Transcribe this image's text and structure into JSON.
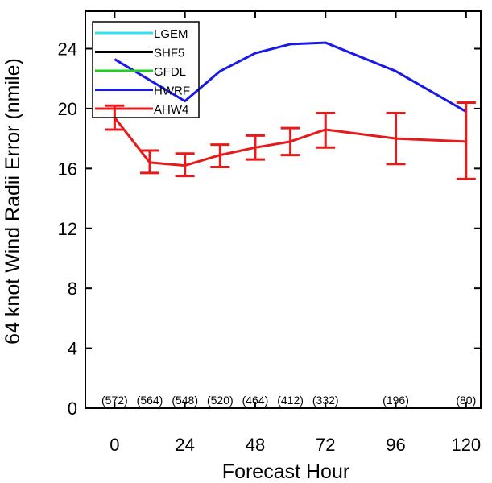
{
  "chart_data": {
    "type": "line",
    "title": "",
    "xlabel": "Forecast Hour",
    "ylabel": "64 knot Wind Radii Error (nmile)",
    "xlim": [
      -10,
      125
    ],
    "ylim": [
      0,
      26.5
    ],
    "xticks": [
      0,
      24,
      48,
      72,
      96,
      120
    ],
    "yticks": [
      0,
      4,
      8,
      12,
      16,
      20,
      24
    ],
    "grid": false,
    "legend_position": "top-left",
    "series": [
      {
        "name": "LGEM",
        "color": "#33e0f0",
        "x": [],
        "y": []
      },
      {
        "name": "SHF5",
        "color": "#000000",
        "x": [],
        "y": []
      },
      {
        "name": "GFDL",
        "color": "#22cc22",
        "x": [],
        "y": []
      },
      {
        "name": "HWRF",
        "color": "#1a1ae6",
        "x": [
          0,
          24,
          36,
          48,
          60,
          72,
          96,
          120
        ],
        "y": [
          23.3,
          20.5,
          22.5,
          23.7,
          24.3,
          24.4,
          22.5,
          19.8
        ]
      },
      {
        "name": "AHW4",
        "color": "#e61a1a",
        "x": [
          0,
          12,
          24,
          36,
          48,
          60,
          72,
          96,
          120
        ],
        "y": [
          19.4,
          16.4,
          16.2,
          16.9,
          17.4,
          17.8,
          18.6,
          18.0,
          17.8
        ],
        "err_low": [
          18.6,
          15.7,
          15.5,
          16.1,
          16.6,
          16.9,
          17.4,
          16.3,
          15.3
        ],
        "err_high": [
          20.2,
          17.2,
          17.0,
          17.6,
          18.2,
          18.7,
          19.7,
          19.7,
          20.4
        ]
      }
    ],
    "annotations": [
      {
        "x": 0,
        "text": "(572)"
      },
      {
        "x": 12,
        "text": "(564)"
      },
      {
        "x": 24,
        "text": "(548)"
      },
      {
        "x": 36,
        "text": "(520)"
      },
      {
        "x": 48,
        "text": "(464)"
      },
      {
        "x": 60,
        "text": "(412)"
      },
      {
        "x": 72,
        "text": "(332)"
      },
      {
        "x": 96,
        "text": "(196)"
      },
      {
        "x": 120,
        "text": "(80)"
      }
    ]
  }
}
